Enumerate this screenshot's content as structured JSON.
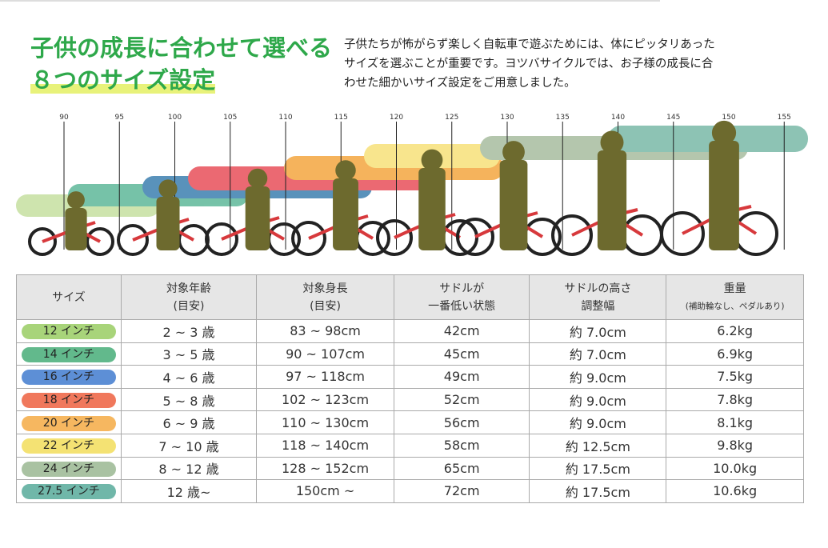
{
  "header": {
    "title": [
      "子供の成長に合わせて選べる",
      "８つのサイズ設定"
    ],
    "description": [
      "子供たちが怖がらず楽しく自転車で遊ぶためには、体にピッタリあった",
      "サイズを選ぶことが重要です。ヨツバサイクルでは、お子様の成長に合",
      "わせた細かいサイズ設定をご用意しました。"
    ]
  },
  "ruler": [
    90,
    95,
    100,
    105,
    110,
    115,
    120,
    125,
    130,
    135,
    140,
    145,
    150,
    155
  ],
  "table": {
    "header": [
      [
        "サイズ"
      ],
      [
        "対象年齢",
        "(目安)"
      ],
      [
        "対象身長",
        "(目安)"
      ],
      [
        "サドルが",
        "一番低い状態"
      ],
      [
        "サドルの高さ",
        "調整幅"
      ],
      [
        "重量",
        "(補助輪なし、ペダルあり)"
      ]
    ],
    "rows": [
      [
        "12 インチ",
        "2 ~ 3 歳",
        "83 ~ 98cm",
        "42cm",
        "約 7.0cm",
        "6.2kg"
      ],
      [
        "14 インチ",
        "3 ~ 5 歳",
        "90 ~ 107cm",
        "45cm",
        "約 7.0cm",
        "6.9kg"
      ],
      [
        "16 インチ",
        "4 ~ 6 歳",
        "97 ~ 118cm",
        "49cm",
        "約 9.0cm",
        "7.5kg"
      ],
      [
        "18 インチ",
        "5 ~ 8 歳",
        "102 ~ 123cm",
        "52cm",
        "約 9.0cm",
        "7.8kg"
      ],
      [
        "20 インチ",
        "6 ~ 9 歳",
        "110 ~ 130cm",
        "56cm",
        "約 9.0cm",
        "8.1kg"
      ],
      [
        "22 インチ",
        "7 ~ 10 歳",
        "118 ~ 140cm",
        "58cm",
        "約 12.5cm",
        "9.8kg"
      ],
      [
        "24 インチ",
        "8 ~ 12 歳",
        "128 ~ 152cm",
        "65cm",
        "約 17.5cm",
        "10.0kg"
      ],
      [
        "27.5 インチ",
        "12 歳~",
        "150cm ~",
        "72cm",
        "約 17.5cm",
        "10.6kg"
      ]
    ]
  }
}
